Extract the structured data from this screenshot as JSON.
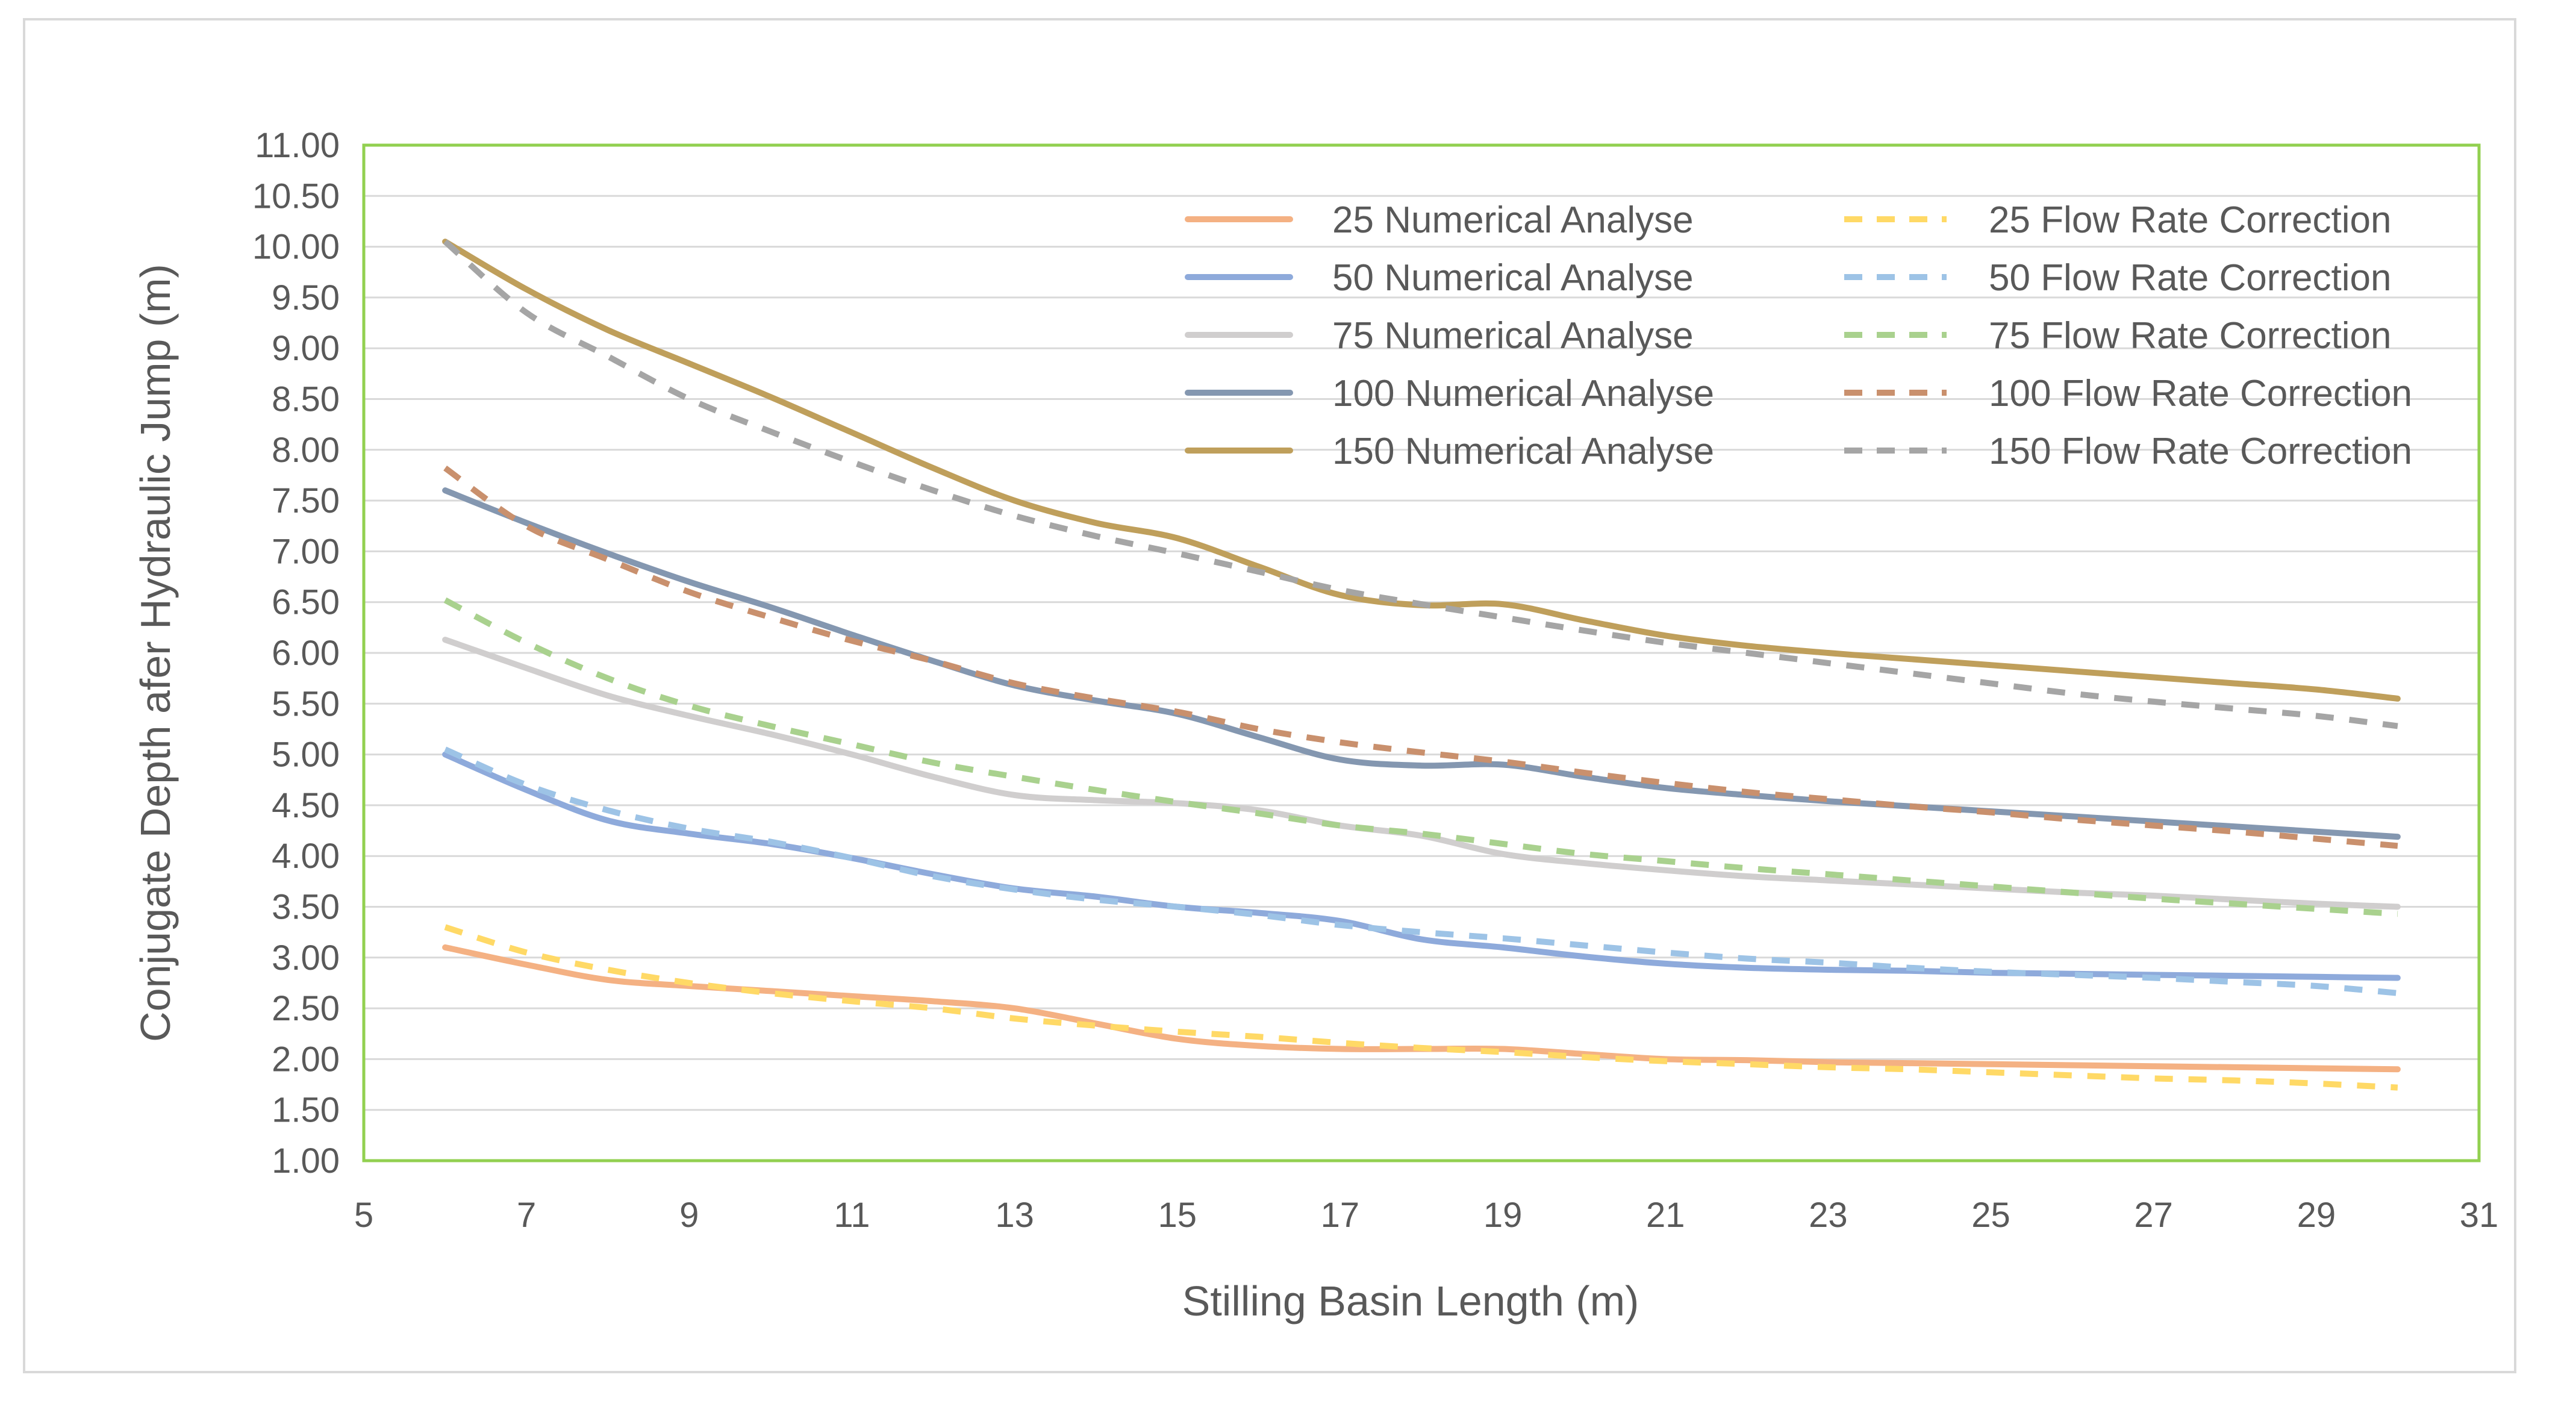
{
  "chart_data": {
    "type": "line",
    "title": "",
    "xlabel": "Stilling Basin Length (m)",
    "ylabel": "Conjugate Depth afer Hydraulic Jump (m)",
    "xlim": [
      5,
      31
    ],
    "ylim": [
      1.0,
      11.0
    ],
    "x_ticks": [
      "5",
      "7",
      "9",
      "11",
      "13",
      "15",
      "17",
      "19",
      "21",
      "23",
      "25",
      "27",
      "29",
      "31"
    ],
    "y_ticks": [
      "1.00",
      "1.50",
      "2.00",
      "2.50",
      "3.00",
      "3.50",
      "4.00",
      "4.50",
      "5.00",
      "5.50",
      "6.00",
      "6.50",
      "7.00",
      "7.50",
      "8.00",
      "8.50",
      "9.00",
      "9.50",
      "10.00",
      "10.50",
      "11.00"
    ],
    "grid": "horizontal",
    "legend_position": "top-right",
    "plot_border_color": "#92d050",
    "series": [
      {
        "name": "25 Numerical Analyse",
        "color": "#f4b183",
        "dash": false,
        "x": [
          6,
          7,
          8,
          9,
          10,
          11,
          12,
          13,
          14,
          15,
          16,
          17,
          18,
          19,
          20,
          21,
          22,
          23,
          24,
          25,
          26,
          27,
          28,
          29,
          30
        ],
        "y": [
          3.1,
          2.93,
          2.78,
          2.72,
          2.67,
          2.62,
          2.57,
          2.5,
          2.35,
          2.2,
          2.13,
          2.1,
          2.1,
          2.1,
          2.05,
          2.0,
          1.99,
          1.97,
          1.96,
          1.95,
          1.94,
          1.93,
          1.92,
          1.91,
          1.9
        ]
      },
      {
        "name": "25 Flow Rate Correction",
        "color": "#ffd966",
        "dash": true,
        "x": [
          6,
          7,
          8,
          9,
          10,
          11,
          12,
          13,
          14,
          15,
          16,
          17,
          18,
          19,
          20,
          21,
          22,
          23,
          24,
          25,
          26,
          27,
          28,
          29,
          30
        ],
        "y": [
          3.3,
          3.05,
          2.88,
          2.75,
          2.65,
          2.57,
          2.5,
          2.4,
          2.33,
          2.27,
          2.22,
          2.16,
          2.11,
          2.07,
          2.02,
          1.98,
          1.95,
          1.92,
          1.9,
          1.87,
          1.84,
          1.81,
          1.79,
          1.76,
          1.72
        ]
      },
      {
        "name": "50 Numerical Analyse",
        "color": "#8eaadb",
        "dash": false,
        "x": [
          6,
          7,
          8,
          9,
          10,
          11,
          12,
          13,
          14,
          15,
          16,
          17,
          18,
          19,
          20,
          21,
          22,
          23,
          24,
          25,
          26,
          27,
          28,
          29,
          30
        ],
        "y": [
          5.0,
          4.65,
          4.35,
          4.22,
          4.12,
          3.98,
          3.82,
          3.68,
          3.6,
          3.5,
          3.44,
          3.36,
          3.18,
          3.1,
          3.01,
          2.94,
          2.9,
          2.88,
          2.87,
          2.85,
          2.84,
          2.83,
          2.82,
          2.81,
          2.8
        ]
      },
      {
        "name": "50 Flow Rate Correction",
        "color": "#9dc3e6",
        "dash": true,
        "x": [
          6,
          7,
          8,
          9,
          10,
          11,
          12,
          13,
          14,
          15,
          16,
          17,
          18,
          19,
          20,
          21,
          22,
          23,
          24,
          25,
          26,
          27,
          28,
          29,
          30
        ],
        "y": [
          5.05,
          4.7,
          4.45,
          4.27,
          4.14,
          3.98,
          3.8,
          3.67,
          3.57,
          3.5,
          3.42,
          3.32,
          3.25,
          3.19,
          3.12,
          3.05,
          2.99,
          2.95,
          2.9,
          2.86,
          2.83,
          2.8,
          2.76,
          2.72,
          2.65
        ]
      },
      {
        "name": "75 Numerical Analyse",
        "color": "#d0cece",
        "dash": false,
        "x": [
          6,
          7,
          8,
          9,
          10,
          11,
          12,
          13,
          14,
          15,
          16,
          17,
          18,
          19,
          20,
          21,
          22,
          23,
          24,
          25,
          26,
          27,
          28,
          29,
          30
        ],
        "y": [
          6.13,
          5.85,
          5.58,
          5.38,
          5.2,
          5.0,
          4.78,
          4.6,
          4.55,
          4.52,
          4.45,
          4.3,
          4.2,
          4.02,
          3.93,
          3.86,
          3.8,
          3.76,
          3.72,
          3.68,
          3.64,
          3.61,
          3.57,
          3.53,
          3.5
        ]
      },
      {
        "name": "75 Flow Rate Correction",
        "color": "#a9d18e",
        "dash": true,
        "x": [
          6,
          7,
          8,
          9,
          10,
          11,
          12,
          13,
          14,
          15,
          16,
          17,
          18,
          19,
          20,
          21,
          22,
          23,
          24,
          25,
          26,
          27,
          28,
          29,
          30
        ],
        "y": [
          6.52,
          6.1,
          5.75,
          5.48,
          5.28,
          5.1,
          4.92,
          4.78,
          4.65,
          4.53,
          4.42,
          4.3,
          4.22,
          4.12,
          4.02,
          3.95,
          3.88,
          3.82,
          3.76,
          3.7,
          3.64,
          3.58,
          3.53,
          3.48,
          3.43
        ]
      },
      {
        "name": "100 Numerical Analyse",
        "color": "#8497b0",
        "dash": false,
        "x": [
          6,
          7,
          8,
          9,
          10,
          11,
          12,
          13,
          14,
          15,
          16,
          17,
          18,
          19,
          20,
          21,
          22,
          23,
          24,
          25,
          26,
          27,
          28,
          29,
          30
        ],
        "y": [
          7.6,
          7.28,
          6.98,
          6.7,
          6.45,
          6.18,
          5.92,
          5.68,
          5.53,
          5.4,
          5.17,
          4.95,
          4.89,
          4.9,
          4.78,
          4.67,
          4.6,
          4.54,
          4.49,
          4.44,
          4.39,
          4.34,
          4.29,
          4.24,
          4.19
        ]
      },
      {
        "name": "100 Flow Rate Correction",
        "color": "#c9906d",
        "dash": true,
        "x": [
          6,
          7,
          8,
          9,
          10,
          11,
          12,
          13,
          14,
          15,
          16,
          17,
          18,
          19,
          20,
          21,
          22,
          23,
          24,
          25,
          26,
          27,
          28,
          29,
          30
        ],
        "y": [
          7.82,
          7.25,
          6.92,
          6.6,
          6.35,
          6.12,
          5.92,
          5.7,
          5.55,
          5.42,
          5.25,
          5.12,
          5.02,
          4.93,
          4.82,
          4.72,
          4.63,
          4.56,
          4.49,
          4.43,
          4.36,
          4.3,
          4.24,
          4.17,
          4.1
        ]
      },
      {
        "name": "150 Numerical Analyse",
        "color": "#bf9f5b",
        "dash": false,
        "x": [
          6,
          7,
          8,
          9,
          10,
          11,
          12,
          13,
          14,
          15,
          16,
          17,
          18,
          19,
          20,
          21,
          22,
          23,
          24,
          25,
          26,
          27,
          28,
          29,
          30
        ],
        "y": [
          10.05,
          9.58,
          9.18,
          8.85,
          8.52,
          8.17,
          7.82,
          7.5,
          7.28,
          7.13,
          6.85,
          6.57,
          6.47,
          6.48,
          6.32,
          6.17,
          6.07,
          6.0,
          5.94,
          5.88,
          5.82,
          5.76,
          5.7,
          5.64,
          5.55
        ]
      },
      {
        "name": "150 Flow Rate Correction",
        "color": "#a5a5a5",
        "dash": true,
        "x": [
          6,
          7,
          8,
          9,
          10,
          11,
          12,
          13,
          14,
          15,
          16,
          17,
          18,
          19,
          20,
          21,
          22,
          23,
          24,
          25,
          26,
          27,
          28,
          29,
          30
        ],
        "y": [
          10.05,
          9.35,
          8.92,
          8.5,
          8.18,
          7.88,
          7.6,
          7.35,
          7.15,
          6.98,
          6.8,
          6.62,
          6.48,
          6.35,
          6.22,
          6.1,
          6.0,
          5.9,
          5.8,
          5.7,
          5.6,
          5.52,
          5.45,
          5.38,
          5.28
        ]
      }
    ]
  }
}
